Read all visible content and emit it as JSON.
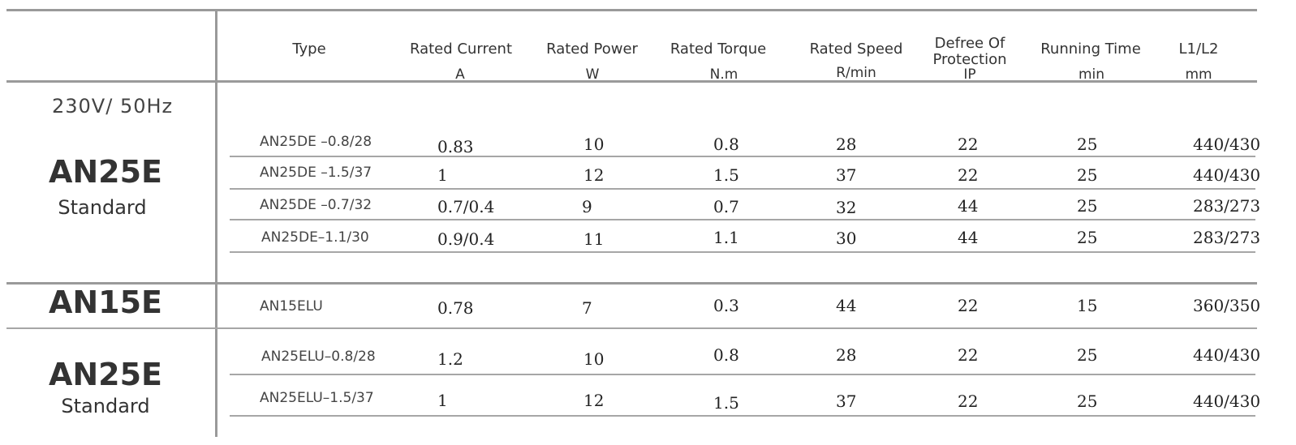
{
  "headers": {
    "type": "Type",
    "rated_current": "Rated Current",
    "rated_current_unit": "A",
    "rated_power": "Rated  Power",
    "rated_power_unit": "W",
    "rated_torque": "Rated  Torque",
    "rated_torque_unit": "N.m",
    "rated_speed": "Rated Speed",
    "rated_speed_unit": "R/min",
    "protection_line1": "Defree Of",
    "protection_line2": "Protection",
    "protection_unit": "IP",
    "running_time": "Running  Time",
    "running_time_unit": "min",
    "dimensions": "L1/L2",
    "dimensions_unit": "mm"
  },
  "left": {
    "voltage": "230V/ 50Hz",
    "group1_name": "AN25E",
    "group1_sub": "Standard",
    "group2_name": "AN15E",
    "group3_name": "AN25E",
    "group3_sub": "Standard"
  },
  "rows": [
    {
      "type": "AN25DE –0.8/28",
      "current": "0.83",
      "power": "10",
      "torque": "0.8",
      "speed": "28",
      "ip": "22",
      "time": "25",
      "dim": "440/430"
    },
    {
      "type": "AN25DE –1.5/37",
      "current": "1",
      "power": "12",
      "torque": "1.5",
      "speed": "37",
      "ip": "22",
      "time": "25",
      "dim": "440/430"
    },
    {
      "type": "AN25DE –0.7/32",
      "current": "0.7/0.4",
      "power": "9",
      "torque": "0.7",
      "speed": "32",
      "ip": "44",
      "time": "25",
      "dim": "283/273"
    },
    {
      "type": "AN25DE–1.1/30",
      "current": "0.9/0.4",
      "power": "11",
      "torque": "1.1",
      "speed": "30",
      "ip": "44",
      "time": "25",
      "dim": "283/273"
    },
    {
      "type": "AN15ELU",
      "current": "0.78",
      "power": "7",
      "torque": "0.3",
      "speed": "44",
      "ip": "22",
      "time": "15",
      "dim": "360/350"
    },
    {
      "type": "AN25ELU–0.8/28",
      "current": "1.2",
      "power": "10",
      "torque": "0.8",
      "speed": "28",
      "ip": "22",
      "time": "25",
      "dim": "440/430"
    },
    {
      "type": "AN25ELU–1.5/37",
      "current": "1",
      "power": "12",
      "torque": "1.5",
      "speed": "37",
      "ip": "22",
      "time": "25",
      "dim": "440/430"
    }
  ]
}
